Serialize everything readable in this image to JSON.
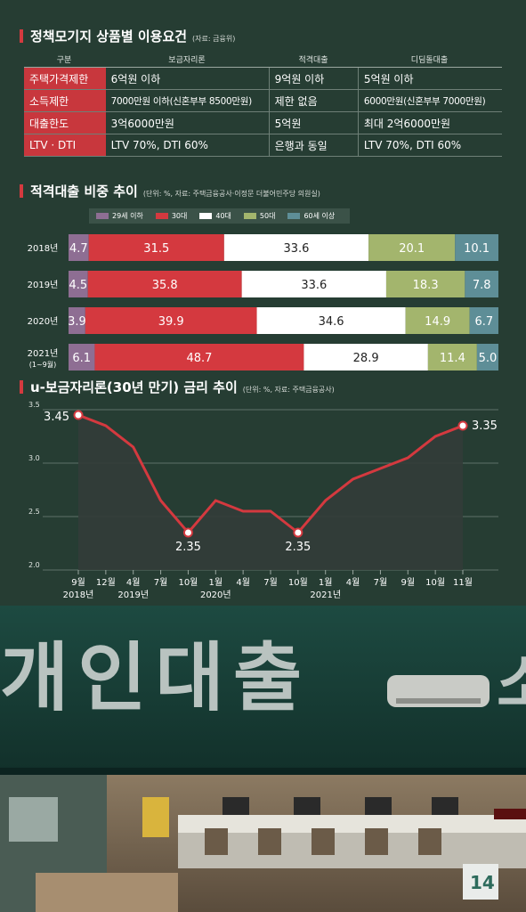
{
  "table_section": {
    "title": "정책모기지 상품별 이용요건",
    "source": "(자료: 금융위)",
    "headers": [
      "구분",
      "보금자리론",
      "적격대출",
      "디딤돌대출"
    ],
    "rows": [
      {
        "label": "주택가격제한",
        "cells": [
          "6억원 이하",
          "9억원 이하",
          "5억원 이하"
        ]
      },
      {
        "label": "소득제한",
        "cells": [
          "7000만원 이하(신혼부부 8500만원)",
          "제한 없음",
          "6000만원(신혼부부 7000만원)"
        ]
      },
      {
        "label": "대출한도",
        "cells": [
          "3억6000만원",
          "5억원",
          "최대 2억6000만원"
        ]
      },
      {
        "label": "LTV · DTI",
        "cells": [
          "LTV 70%, DTI 60%",
          "은행과 동일",
          "LTV 70%, DTI 60%"
        ]
      }
    ]
  },
  "chart_data": [
    {
      "type": "bar",
      "orientation": "horizontal-stacked-100",
      "title": "적격대출 비중 추이",
      "subtitle": "(단위: %, 자료: 주택금융공사·이정문 더불어민주당 의원실)",
      "categories": [
        "2018년",
        "2019년",
        "2020년",
        "2021년"
      ],
      "category_notes": [
        "",
        "",
        "",
        "(1~9월)"
      ],
      "series": [
        {
          "name": "29세 이하",
          "color": "#8e6e93",
          "values": [
            4.7,
            4.5,
            3.9,
            6.1
          ]
        },
        {
          "name": "30대",
          "color": "#d4393f",
          "values": [
            31.5,
            35.8,
            39.9,
            48.7
          ]
        },
        {
          "name": "40대",
          "color": "#ffffff",
          "values": [
            33.6,
            33.6,
            34.6,
            28.9
          ]
        },
        {
          "name": "50대",
          "color": "#a3b56d",
          "values": [
            20.1,
            18.3,
            14.9,
            11.4
          ]
        },
        {
          "name": "60세 이상",
          "color": "#5e8e97",
          "values": [
            10.1,
            7.8,
            6.7,
            5.0
          ]
        }
      ],
      "value_labels": [
        [
          "4.7",
          "31.5",
          "33.6",
          "20.1",
          "10.1"
        ],
        [
          "4.5",
          "35.8",
          "33.6",
          "18.3",
          "7.8"
        ],
        [
          "3.9",
          "39.9",
          "34.6",
          "14.9",
          "6.7"
        ],
        [
          "6.1",
          "48.7",
          "28.9",
          "11.4",
          "5.0"
        ]
      ]
    },
    {
      "type": "line",
      "title": "u-보금자리론(30년 만기) 금리 추이",
      "subtitle": "(단위: %, 자료: 주택금융공사)",
      "x": [
        "9월",
        "12월",
        "4월",
        "7월",
        "10월",
        "1월",
        "4월",
        "7월",
        "10월",
        "1월",
        "4월",
        "7월",
        "9월",
        "10월",
        "11월"
      ],
      "year_labels": [
        {
          "index": 0,
          "text": "2018년"
        },
        {
          "index": 2,
          "text": "2019년"
        },
        {
          "index": 5,
          "text": "2020년"
        },
        {
          "index": 9,
          "text": "2021년"
        }
      ],
      "y": [
        3.45,
        3.35,
        3.15,
        2.65,
        2.35,
        2.65,
        2.55,
        2.55,
        2.35,
        2.65,
        2.85,
        2.95,
        3.05,
        3.25,
        3.35
      ],
      "ylim": [
        2.0,
        3.5
      ],
      "yticks": [
        "2.0",
        "2.5",
        "3.0",
        "3.5"
      ],
      "annotations": [
        {
          "index": 0,
          "text": "3.45"
        },
        {
          "index": 4,
          "text": "2.35"
        },
        {
          "index": 8,
          "text": "2.35"
        },
        {
          "index": 14,
          "text": "3.35"
        }
      ],
      "grid": true,
      "line_color": "#d4393f"
    }
  ],
  "photo": {
    "sign_text": "개인대출",
    "sign_partial": "소",
    "counter_number": "14"
  }
}
